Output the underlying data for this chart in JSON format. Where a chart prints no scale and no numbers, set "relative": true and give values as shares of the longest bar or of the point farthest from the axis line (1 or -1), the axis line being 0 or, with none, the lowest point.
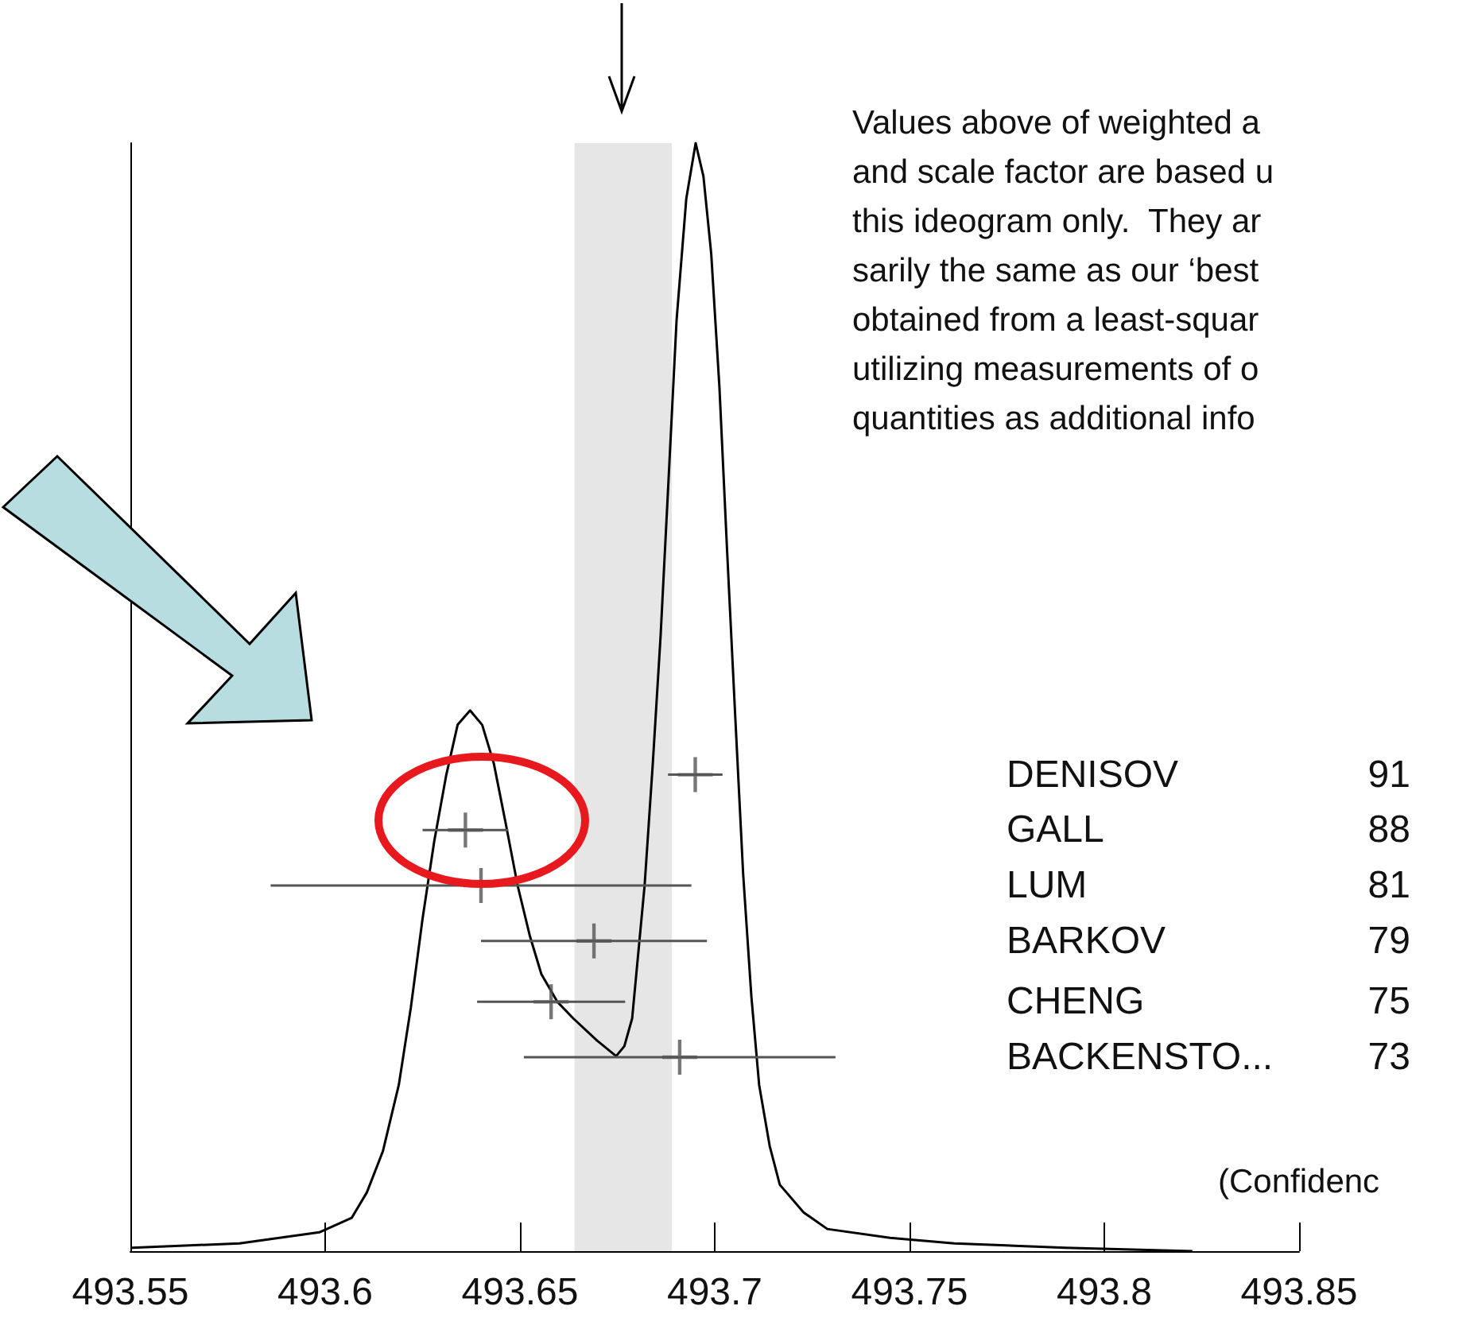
{
  "chart_data": {
    "type": "line",
    "relative": true,
    "tick_labels": "x",
    "xlim": [
      493.55,
      493.85
    ],
    "xticks": [
      493.55,
      493.6,
      493.65,
      493.7,
      493.75,
      493.8,
      493.85
    ],
    "bands": [
      {
        "axis": "x",
        "from": 493.664,
        "to": 493.689,
        "color": "#e6e6e6"
      }
    ],
    "series": [
      {
        "color": "#000000",
        "x": [
          493.5504,
          493.578,
          493.5985,
          493.6068,
          493.6107,
          493.6148,
          493.6189,
          493.622,
          493.625,
          493.628,
          493.6311,
          493.634,
          493.6372,
          493.6403,
          493.6433,
          493.6464,
          493.6494,
          493.6525,
          493.6555,
          493.6596,
          493.6637,
          493.6698,
          493.6747,
          493.6768,
          493.6788,
          493.682,
          493.6841,
          493.6861,
          493.6882,
          493.6902,
          493.6927,
          493.6951,
          493.6971,
          493.6991,
          493.7012,
          493.7032,
          493.7053,
          493.7073,
          493.7094,
          493.7114,
          493.7141,
          493.7167,
          493.7228,
          493.7289,
          493.745,
          493.7615,
          493.79,
          493.8226
        ],
        "values": [
          0.003,
          0.007,
          0.017,
          0.03,
          0.053,
          0.09,
          0.15,
          0.22,
          0.3,
          0.37,
          0.43,
          0.475,
          0.488,
          0.475,
          0.44,
          0.385,
          0.33,
          0.285,
          0.25,
          0.225,
          0.21,
          0.19,
          0.176,
          0.185,
          0.21,
          0.33,
          0.44,
          0.555,
          0.7,
          0.84,
          0.95,
          1,
          0.97,
          0.9,
          0.78,
          0.63,
          0.48,
          0.34,
          0.23,
          0.15,
          0.095,
          0.06,
          0.035,
          0.02,
          0.012,
          0.007,
          0.003,
          0.0
        ]
      },
      {
        "type": "scatter",
        "color": "#555555",
        "marker": "cross",
        "x": [
          493.695,
          493.636,
          493.64,
          493.669,
          493.658,
          493.691
        ],
        "values": [
          0.43,
          0.38,
          0.33,
          0.28,
          0.225,
          0.175
        ],
        "xerrors": [
          0.007,
          0.011,
          0.054,
          0.029,
          0.019,
          0.04
        ]
      }
    ],
    "annotations": [
      "Values above of weighted a\nand scale factor are based u\nthis ideogram only.  They ar\nsarily the same as our ‘best\nobtained from a least-squar\nutilizing measurements of o\nquantities as additional info",
      "(Confidenc",
      "DENISOV",
      "91",
      "GALL",
      "88",
      "LUM",
      "81",
      "BARKOV",
      "79",
      "CHENG",
      "75",
      "BACKENSTO...",
      "73"
    ]
  }
}
